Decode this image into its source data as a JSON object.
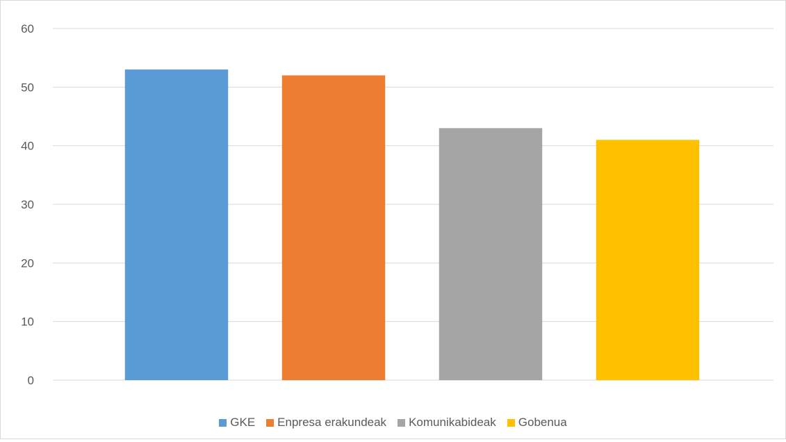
{
  "chart_data": {
    "type": "bar",
    "categories": [
      "GKE",
      "Enpresa erakundeak",
      "Komunikabideak",
      "Gobenua"
    ],
    "values": [
      53,
      52,
      43,
      41
    ],
    "colors": [
      "#5b9bd5",
      "#ed7d31",
      "#a5a5a5",
      "#ffc000"
    ],
    "title": "",
    "xlabel": "",
    "ylabel": "",
    "ylim": [
      0,
      60
    ],
    "yticks": [
      0,
      10,
      20,
      30,
      40,
      50,
      60
    ],
    "grid": true,
    "legend_position": "bottom"
  }
}
